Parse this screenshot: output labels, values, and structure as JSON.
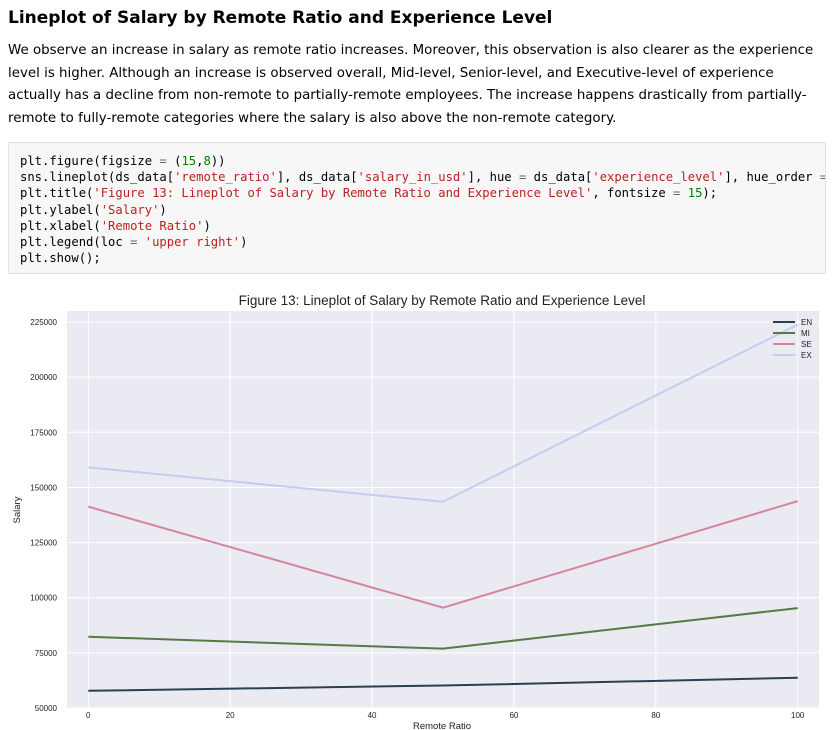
{
  "heading": "Lineplot of Salary by Remote Ratio and Experience Level",
  "paragraph": "We observe an increase in salary as remote ratio increases. Moreover, this observation is also clearer as the experience level is higher. Although an increase is observed overall, Mid-level, Senior-level, and Executive-level of experience actually has a decline from non-remote to partially-remote employees. The increase happens drastically from partially-remote to fully-remote categories where the salary is also above the non-remote category.",
  "code": {
    "line1": {
      "a": "plt.figure(figsize ",
      "op": "=",
      "b": " (",
      "n1": "15",
      "c": ",",
      "n2": "8",
      "d": "))"
    },
    "line2": {
      "a": "sns.lineplot(ds_data[",
      "s1": "'remote_ratio'",
      "b": "], ds_data[",
      "s2": "'salary_in_usd'",
      "c": "], hue ",
      "op1": "=",
      "d": " ds_data[",
      "s3": "'experience_level'",
      "e": "], hue_order ",
      "op2": "=",
      "f": " [",
      "s4": "'"
    },
    "line3": {
      "a": "plt.title(",
      "s1": "'Figure 13: Lineplot of Salary by Remote Ratio and Experience Level'",
      "b": ", fontsize ",
      "op": "=",
      "c": " ",
      "n": "15",
      "d": ");"
    },
    "line4": {
      "a": "plt.ylabel(",
      "s": "'Salary'",
      "b": ")"
    },
    "line5": {
      "a": "plt.xlabel(",
      "s": "'Remote Ratio'",
      "b": ")"
    },
    "line6": {
      "a": "plt.legend(loc ",
      "op": "=",
      "b": " ",
      "s": "'upper right'",
      "c": ")"
    },
    "line7": {
      "a": "plt.show();"
    }
  },
  "chart_data": {
    "type": "line",
    "title": "Figure 13: Lineplot of Salary by Remote Ratio and Experience Level",
    "xlabel": "Remote Ratio",
    "ylabel": "Salary",
    "x": [
      0,
      50,
      100
    ],
    "xlim": [
      -3,
      103
    ],
    "ylim": [
      50000,
      230000
    ],
    "xticks": [
      0,
      20,
      40,
      60,
      80,
      100
    ],
    "yticks": [
      50000,
      75000,
      100000,
      125000,
      150000,
      175000,
      200000,
      225000
    ],
    "grid": true,
    "legend_position": "upper right",
    "series": [
      {
        "name": "EN",
        "color": "#2b3f52",
        "values": [
          57800,
          60200,
          63700
        ]
      },
      {
        "name": "MI",
        "color": "#557a43",
        "values": [
          82300,
          76900,
          95300
        ]
      },
      {
        "name": "SE",
        "color": "#d5849c",
        "values": [
          141300,
          95500,
          143800
        ]
      },
      {
        "name": "EX",
        "color": "#c4cdef",
        "values": [
          159100,
          143500,
          223800
        ]
      }
    ]
  }
}
